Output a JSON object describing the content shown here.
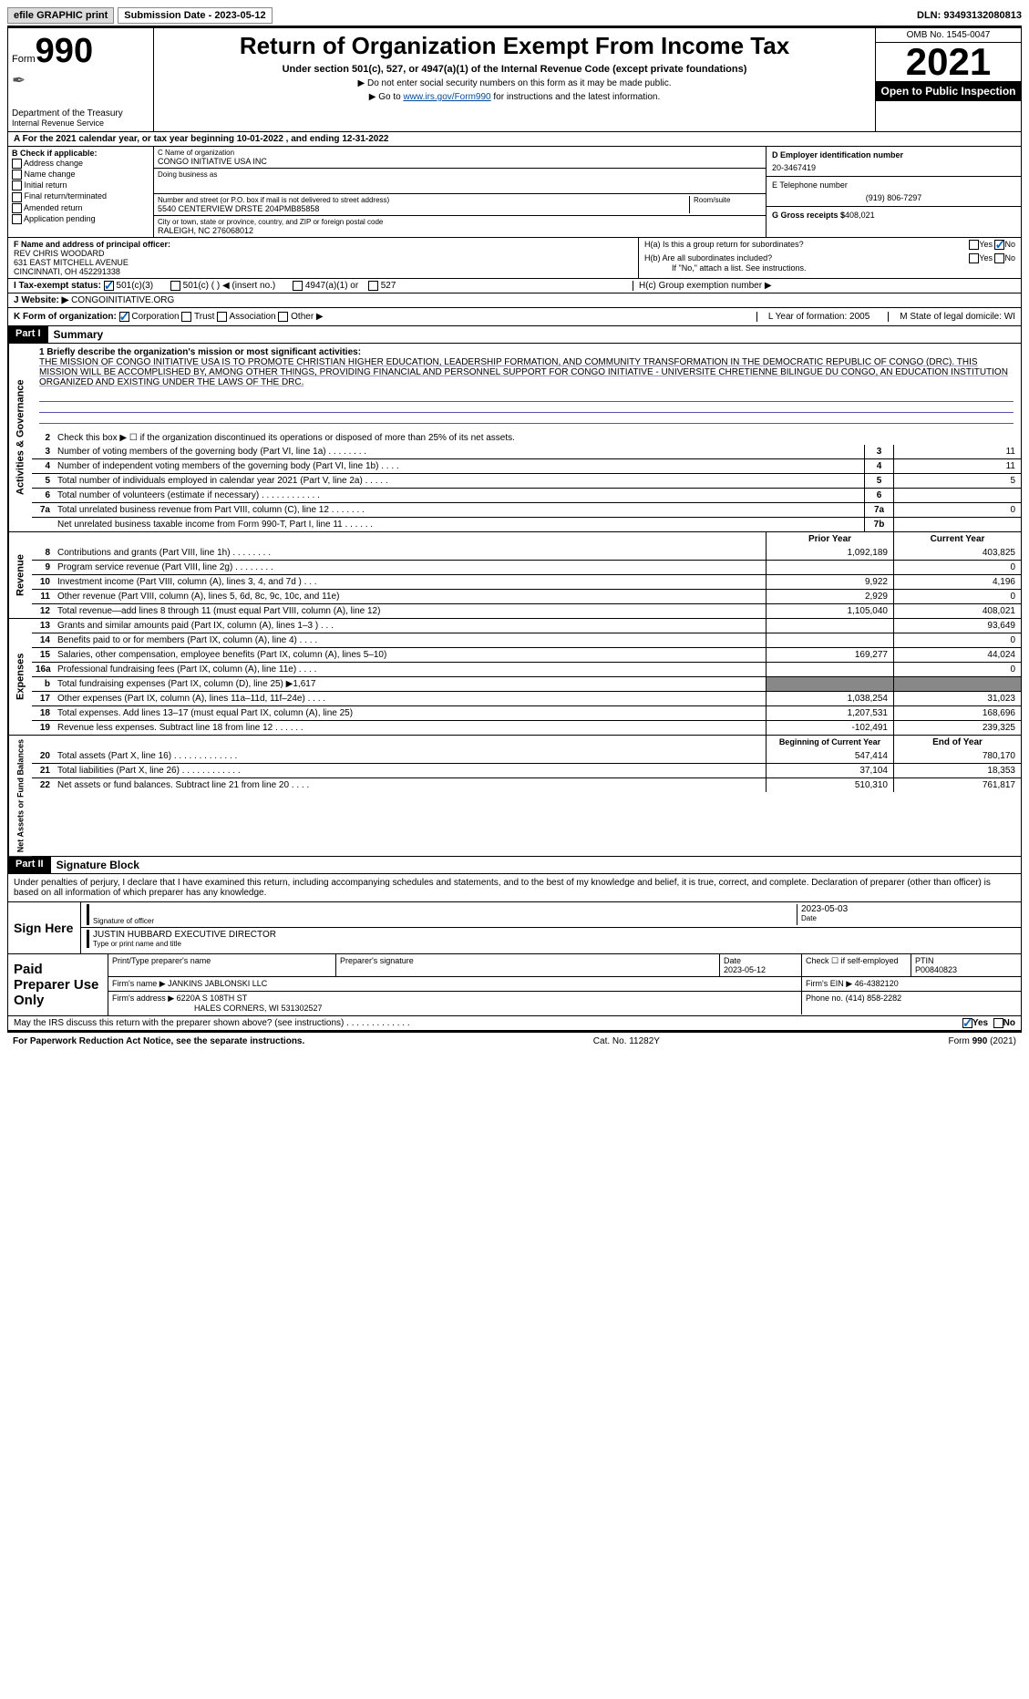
{
  "topbar": {
    "efile": "efile GRAPHIC print",
    "sub_label": "Submission Date - 2023-05-12",
    "dln": "DLN: 93493132080813"
  },
  "header": {
    "form_word": "Form",
    "form_num": "990",
    "dept": "Department of the Treasury",
    "irs": "Internal Revenue Service",
    "title": "Return of Organization Exempt From Income Tax",
    "subtitle": "Under section 501(c), 527, or 4947(a)(1) of the Internal Revenue Code (except private foundations)",
    "note1": "▶ Do not enter social security numbers on this form as it may be made public.",
    "note2_pre": "▶ Go to ",
    "note2_link": "www.irs.gov/Form990",
    "note2_post": " for instructions and the latest information.",
    "omb": "OMB No. 1545-0047",
    "year": "2021",
    "inspect": "Open to Public Inspection"
  },
  "row_a": "A For the 2021 calendar year, or tax year beginning 10-01-2022   , and ending 12-31-2022",
  "b": {
    "label": "B Check if applicable:",
    "items": [
      "Address change",
      "Name change",
      "Initial return",
      "Final return/terminated",
      "Amended return",
      "Application pending"
    ]
  },
  "c": {
    "name_lbl": "C Name of organization",
    "name": "CONGO INITIATIVE USA INC",
    "dba_lbl": "Doing business as",
    "street_lbl": "Number and street (or P.O. box if mail is not delivered to street address)",
    "room_lbl": "Room/suite",
    "street": "5540 CENTERVIEW DRSTE 204PMB85858",
    "city_lbl": "City or town, state or province, country, and ZIP or foreign postal code",
    "city": "RALEIGH, NC  276068012"
  },
  "d": {
    "ein_lbl": "D Employer identification number",
    "ein": "20-3467419",
    "phone_lbl": "E Telephone number",
    "phone": "(919) 806-7297",
    "gross_lbl": "G Gross receipts $",
    "gross": "408,021"
  },
  "f": {
    "lbl": "F  Name and address of principal officer:",
    "name": "REV CHRIS WOODARD",
    "addr1": "631 EAST MITCHELL AVENUE",
    "addr2": "CINCINNATI, OH  452291338"
  },
  "h": {
    "a_lbl": "H(a)  Is this a group return for subordinates?",
    "b_lbl": "H(b)  Are all subordinates included?",
    "b_note": "If \"No,\" attach a list. See instructions.",
    "c_lbl": "H(c)  Group exemption number ▶",
    "yes": "Yes",
    "no": "No"
  },
  "i": {
    "lbl": "I   Tax-exempt status:",
    "opts": [
      "501(c)(3)",
      "501(c) (   ) ◀ (insert no.)",
      "4947(a)(1) or",
      "527"
    ]
  },
  "j": {
    "lbl": "J   Website: ▶",
    "val": "CONGOINITIATIVE.ORG"
  },
  "k": {
    "lbl": "K Form of organization:",
    "opts": [
      "Corporation",
      "Trust",
      "Association",
      "Other ▶"
    ],
    "l": "L Year of formation: 2005",
    "m": "M State of legal domicile: WI"
  },
  "part1": {
    "hdr": "Part I",
    "title": "Summary",
    "line1_lbl": "1  Briefly describe the organization's mission or most significant activities:",
    "mission": "THE MISSION OF CONGO INITIATIVE USA IS TO PROMOTE CHRISTIAN HIGHER EDUCATION, LEADERSHIP FORMATION, AND COMMUNITY TRANSFORMATION IN THE DEMOCRATIC REPUBLIC OF CONGO (DRC). THIS MISSION WILL BE ACCOMPLISHED BY, AMONG OTHER THINGS, PROVIDING FINANCIAL AND PERSONNEL SUPPORT FOR CONGO INITIATIVE - UNIVERSITE CHRETIENNE BILINGUE DU CONGO, AN EDUCATION INSTITUTION ORGANIZED AND EXISTING UNDER THE LAWS OF THE DRC.",
    "line2": "Check this box ▶ ☐ if the organization discontinued its operations or disposed of more than 25% of its net assets.",
    "vtab_ag": "Activities & Governance",
    "vtab_rev": "Revenue",
    "vtab_exp": "Expenses",
    "vtab_na": "Net Assets or Fund Balances",
    "rows_gov": [
      {
        "n": "3",
        "d": "Number of voting members of the governing body (Part VI, line 1a)   .    .    .    .    .    .    .    .",
        "b": "3",
        "v": "11"
      },
      {
        "n": "4",
        "d": "Number of independent voting members of the governing body (Part VI, line 1b)    .    .    .    .",
        "b": "4",
        "v": "11"
      },
      {
        "n": "5",
        "d": "Total number of individuals employed in calendar year 2021 (Part V, line 2a)    .    .    .    .    .",
        "b": "5",
        "v": "5"
      },
      {
        "n": "6",
        "d": "Total number of volunteers (estimate if necessary)   .    .    .    .    .    .    .    .    .    .    .    .",
        "b": "6",
        "v": ""
      },
      {
        "n": "7a",
        "d": "Total unrelated business revenue from Part VIII, column (C), line 12    .    .    .    .    .    .    .",
        "b": "7a",
        "v": "0"
      },
      {
        "n": "",
        "d": "Net unrelated business taxable income from Form 990-T, Part I, line 11    .    .    .    .    .    .",
        "b": "7b",
        "v": ""
      }
    ],
    "hdr_prior": "Prior Year",
    "hdr_curr": "Current Year",
    "rows_rev": [
      {
        "n": "8",
        "d": "Contributions and grants (Part VIII, line 1h)   .    .    .    .    .    .    .    .",
        "p": "1,092,189",
        "c": "403,825"
      },
      {
        "n": "9",
        "d": "Program service revenue (Part VIII, line 2g)    .    .    .    .    .    .    .    .",
        "p": "",
        "c": "0"
      },
      {
        "n": "10",
        "d": "Investment income (Part VIII, column (A), lines 3, 4, and 7d )    .    .    .",
        "p": "9,922",
        "c": "4,196"
      },
      {
        "n": "11",
        "d": "Other revenue (Part VIII, column (A), lines 5, 6d, 8c, 9c, 10c, and 11e)",
        "p": "2,929",
        "c": "0"
      },
      {
        "n": "12",
        "d": "Total revenue—add lines 8 through 11 (must equal Part VIII, column (A), line 12)",
        "p": "1,105,040",
        "c": "408,021"
      }
    ],
    "rows_exp": [
      {
        "n": "13",
        "d": "Grants and similar amounts paid (Part IX, column (A), lines 1–3 )   .    .    .",
        "p": "",
        "c": "93,649"
      },
      {
        "n": "14",
        "d": "Benefits paid to or for members (Part IX, column (A), line 4)    .    .    .    .",
        "p": "",
        "c": "0"
      },
      {
        "n": "15",
        "d": "Salaries, other compensation, employee benefits (Part IX, column (A), lines 5–10)",
        "p": "169,277",
        "c": "44,024"
      },
      {
        "n": "16a",
        "d": "Professional fundraising fees (Part IX, column (A), line 11e)    .    .    .    .",
        "p": "",
        "c": "0"
      },
      {
        "n": "b",
        "d": "Total fundraising expenses (Part IX, column (D), line 25) ▶1,617",
        "p": "grey",
        "c": "grey"
      },
      {
        "n": "17",
        "d": "Other expenses (Part IX, column (A), lines 11a–11d, 11f–24e)    .    .    .    .",
        "p": "1,038,254",
        "c": "31,023"
      },
      {
        "n": "18",
        "d": "Total expenses. Add lines 13–17 (must equal Part IX, column (A), line 25)",
        "p": "1,207,531",
        "c": "168,696"
      },
      {
        "n": "19",
        "d": "Revenue less expenses. Subtract line 18 from line 12   .    .    .    .    .    .",
        "p": "-102,491",
        "c": "239,325"
      }
    ],
    "hdr_beg": "Beginning of Current Year",
    "hdr_end": "End of Year",
    "rows_na": [
      {
        "n": "20",
        "d": "Total assets (Part X, line 16)   .    .    .    .    .    .    .    .    .    .    .    .    .",
        "p": "547,414",
        "c": "780,170"
      },
      {
        "n": "21",
        "d": "Total liabilities (Part X, line 26)    .    .    .    .    .    .    .    .    .    .    .    .",
        "p": "37,104",
        "c": "18,353"
      },
      {
        "n": "22",
        "d": "Net assets or fund balances. Subtract line 21 from line 20   .    .    .    .",
        "p": "510,310",
        "c": "761,817"
      }
    ]
  },
  "part2": {
    "hdr": "Part II",
    "title": "Signature Block",
    "decl": "Under penalties of perjury, I declare that I have examined this return, including accompanying schedules and statements, and to the best of my knowledge and belief, it is true, correct, and complete. Declaration of preparer (other than officer) is based on all information of which preparer has any knowledge.",
    "sign_here": "Sign Here",
    "sig_officer": "Signature of officer",
    "sig_date": "2023-05-03",
    "date_lbl": "Date",
    "name_title": "JUSTIN HUBBARD EXECUTIVE DIRECTOR",
    "type_lbl": "Type or print name and title",
    "paid_prep": "Paid Preparer Use Only",
    "prep_name_lbl": "Print/Type preparer's name",
    "prep_sig_lbl": "Preparer's signature",
    "prep_date_lbl": "Date",
    "prep_date": "2023-05-12",
    "self_emp": "Check ☐ if self-employed",
    "ptin_lbl": "PTIN",
    "ptin": "P00840823",
    "firm_name_lbl": "Firm's name    ▶",
    "firm_name": "JANKINS JABLONSKI LLC",
    "firm_ein_lbl": "Firm's EIN ▶",
    "firm_ein": "46-4382120",
    "firm_addr_lbl": "Firm's address ▶",
    "firm_addr1": "6220A S 108TH ST",
    "firm_addr2": "HALES CORNERS, WI  531302527",
    "firm_phone_lbl": "Phone no.",
    "firm_phone": "(414) 858-2282"
  },
  "may": {
    "q": "May the IRS discuss this return with the preparer shown above? (see instructions)    .    .    .    .    .    .    .    .    .    .    .    .    .",
    "yes": "Yes",
    "no": "No"
  },
  "footer": {
    "left": "For Paperwork Reduction Act Notice, see the separate instructions.",
    "mid": "Cat. No. 11282Y",
    "right": "Form 990 (2021)"
  }
}
